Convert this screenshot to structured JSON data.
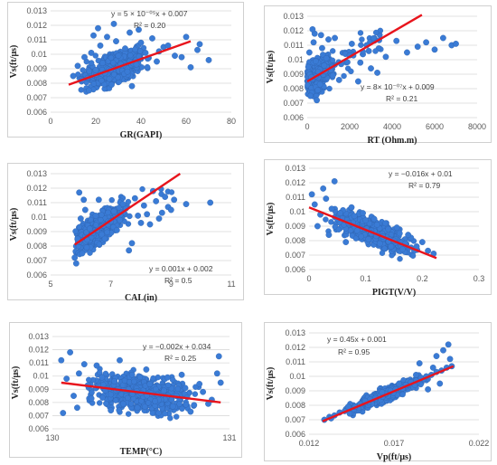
{
  "chart_data": [
    {
      "type": "scatter",
      "ylabel": "Vs(ft/μs)",
      "xlabel": "GR(GAPI)",
      "xlim": [
        0,
        80
      ],
      "ylim": [
        0.006,
        0.013
      ],
      "xticks": [
        "0",
        "20",
        "40",
        "60",
        "80"
      ],
      "yticks": [
        "0.006",
        "0.007",
        "0.008",
        "0.009",
        "0.01",
        "0.011",
        "0.012",
        "0.013"
      ],
      "equation": "y = 5 × 10⁻⁰⁵x + 0.007",
      "r2": "R² = 0.20",
      "trend": {
        "x": [
          8,
          62
        ],
        "y": [
          0.0079,
          0.0109
        ]
      },
      "cloud": {
        "x_center": 28,
        "x_spread": 14,
        "x_min": 8,
        "x_max": 70,
        "y_spread": 0.0009,
        "y_min": 0.0072,
        "y_max": 0.0122
      },
      "points": {
        "x": [
          10,
          12,
          15,
          18,
          20,
          22,
          25,
          27,
          30,
          33,
          35,
          38,
          40,
          43,
          45,
          48,
          50,
          55,
          60,
          65,
          70,
          14,
          17,
          21,
          24,
          28,
          31,
          36,
          42,
          47,
          52,
          58,
          62,
          66,
          19,
          23,
          26,
          29,
          34,
          39
        ],
        "y": [
          0.0085,
          0.0092,
          0.0098,
          0.0101,
          0.0089,
          0.0106,
          0.0112,
          0.0079,
          0.0099,
          0.0104,
          0.0115,
          0.0093,
          0.0108,
          0.0097,
          0.0111,
          0.0102,
          0.0105,
          0.0099,
          0.0112,
          0.0103,
          0.0096,
          0.0082,
          0.0075,
          0.0118,
          0.0087,
          0.0121,
          0.0093,
          0.0078,
          0.0101,
          0.0095,
          0.0106,
          0.0098,
          0.0091,
          0.0107,
          0.0113,
          0.0094,
          0.0083,
          0.0109,
          0.0088,
          0.0117
        ]
      }
    },
    {
      "type": "scatter",
      "ylabel": "Vs(ft/μs)",
      "xlabel": "RT (Ohm.m)",
      "xlim": [
        0,
        8000
      ],
      "ylim": [
        0.006,
        0.013
      ],
      "xticks": [
        "0",
        "2000",
        "4000",
        "6000",
        "8000"
      ],
      "yticks": [
        "0.006",
        "0.007",
        "0.008",
        "0.009",
        "0.01",
        "0.011",
        "0.012",
        "0.013"
      ],
      "equation": "y = 8× 10⁻⁰⁷x + 0.009",
      "r2": "R² = 0.21",
      "trend": {
        "x": [
          0,
          5400
        ],
        "y": [
          0.0085,
          0.0131
        ]
      },
      "cloud": {
        "x_center": 400,
        "x_spread": 700,
        "x_min": 0,
        "x_max": 3500,
        "y_spread": 0.001,
        "y_min": 0.007,
        "y_max": 0.0122
      },
      "points": {
        "x": [
          50,
          100,
          200,
          300,
          400,
          500,
          700,
          900,
          1100,
          1300,
          1500,
          1800,
          2100,
          2500,
          2900,
          3300,
          3700,
          4200,
          4700,
          5200,
          5600,
          6000,
          6400,
          6800,
          7000,
          150,
          350,
          600,
          800,
          1000,
          1200,
          1600,
          2000,
          2400,
          2800,
          3000,
          250,
          450,
          650,
          850
        ],
        "y": [
          0.0095,
          0.0105,
          0.0088,
          0.0112,
          0.0099,
          0.0079,
          0.0108,
          0.0101,
          0.0093,
          0.0115,
          0.0086,
          0.0104,
          0.0111,
          0.0098,
          0.0106,
          0.0091,
          0.0102,
          0.0113,
          0.0105,
          0.0109,
          0.0112,
          0.0107,
          0.0115,
          0.011,
          0.0111,
          0.0075,
          0.0118,
          0.0083,
          0.0096,
          0.0114,
          0.0089,
          0.0097,
          0.0103,
          0.0085,
          0.011,
          0.0094,
          0.0121,
          0.0072,
          0.0117,
          0.0092
        ]
      }
    },
    {
      "type": "scatter",
      "ylabel": "Vs(ft/μs)",
      "xlabel": "CAL(in)",
      "xlim": [
        5,
        11
      ],
      "ylim": [
        0.006,
        0.013
      ],
      "xticks": [
        "5",
        "7",
        "9",
        "11"
      ],
      "yticks": [
        "0.006",
        "0.007",
        "0.008",
        "0.009",
        "0.01",
        "0.011",
        "0.012",
        "0.013"
      ],
      "equation": "y = 0.001x + 0.002",
      "r2": "R² = 0.5",
      "trend": {
        "x": [
          5.8,
          9.3
        ],
        "y": [
          0.0081,
          0.013
        ]
      },
      "cloud": {
        "x_center": 6.6,
        "x_spread": 0.9,
        "x_min": 5.8,
        "x_max": 9.2,
        "y_spread": 0.0009,
        "y_min": 0.0068,
        "y_max": 0.012
      },
      "points": {
        "x": [
          5.8,
          5.9,
          6.0,
          6.1,
          6.2,
          6.3,
          6.5,
          6.7,
          6.9,
          7.1,
          7.3,
          7.5,
          7.7,
          7.9,
          8.1,
          8.3,
          8.5,
          8.7,
          8.9,
          9.1,
          9.5,
          10.3,
          5.85,
          5.95,
          6.05,
          6.15,
          6.4,
          6.6,
          6.8,
          7.0,
          7.2,
          7.4,
          7.6,
          7.8,
          8.0,
          8.2,
          8.4,
          8.6,
          8.8,
          9.0
        ],
        "y": [
          0.0072,
          0.0085,
          0.0099,
          0.0112,
          0.0079,
          0.0092,
          0.0101,
          0.0088,
          0.0095,
          0.0104,
          0.0098,
          0.0106,
          0.0082,
          0.0101,
          0.0108,
          0.0095,
          0.0111,
          0.0103,
          0.0107,
          0.0112,
          0.0109,
          0.011,
          0.0068,
          0.0117,
          0.0075,
          0.0105,
          0.0089,
          0.0112,
          0.0085,
          0.0097,
          0.0091,
          0.0109,
          0.0077,
          0.0113,
          0.0096,
          0.0102,
          0.0118,
          0.0099,
          0.0114,
          0.0105
        ]
      }
    },
    {
      "type": "scatter",
      "ylabel": "Vs(ft/μs)",
      "xlabel": "PIGT(V/V)",
      "xlim": [
        0,
        0.3
      ],
      "ylim": [
        0.006,
        0.013
      ],
      "xticks": [
        "0",
        "0.1",
        "0.2",
        "0.3"
      ],
      "yticks": [
        "0.006",
        "0.007",
        "0.008",
        "0.009",
        "0.01",
        "0.011",
        "0.012",
        "0.013"
      ],
      "equation": "y = −0.016x + 0.01",
      "r2": "R² = 0.79",
      "trend": {
        "x": [
          0,
          0.225
        ],
        "y": [
          0.0103,
          0.0068
        ]
      },
      "cloud": {
        "x_center": 0.11,
        "x_spread": 0.07,
        "x_min": 0.0,
        "x_max": 0.23,
        "y_spread": 0.0008,
        "y_min": 0.0066,
        "y_max": 0.0122
      },
      "points": {
        "x": [
          0.005,
          0.01,
          0.02,
          0.03,
          0.04,
          0.05,
          0.06,
          0.07,
          0.08,
          0.09,
          0.1,
          0.11,
          0.12,
          0.13,
          0.14,
          0.15,
          0.16,
          0.17,
          0.18,
          0.19,
          0.2,
          0.21,
          0.22,
          0.015,
          0.025,
          0.035,
          0.045,
          0.055,
          0.065,
          0.075,
          0.085,
          0.095,
          0.105,
          0.115,
          0.125,
          0.135,
          0.145,
          0.155,
          0.165,
          0.175
        ],
        "y": [
          0.0112,
          0.0105,
          0.0098,
          0.0109,
          0.0102,
          0.0095,
          0.0101,
          0.0092,
          0.0097,
          0.0088,
          0.0094,
          0.0085,
          0.0091,
          0.0083,
          0.0088,
          0.008,
          0.0085,
          0.0078,
          0.0082,
          0.0076,
          0.0079,
          0.0073,
          0.0071,
          0.009,
          0.0116,
          0.0084,
          0.0121,
          0.0099,
          0.0079,
          0.0103,
          0.0087,
          0.0099,
          0.0081,
          0.0095,
          0.0078,
          0.0092,
          0.0076,
          0.0089,
          0.0074,
          0.0084
        ]
      }
    },
    {
      "type": "scatter",
      "ylabel": "Vs(ft/μs)",
      "xlabel": "TEMP(°C)",
      "xlim": [
        130,
        131
      ],
      "ylim": [
        0.006,
        0.013
      ],
      "xticks": [
        "130",
        "131"
      ],
      "yticks": [
        "0.006",
        "0.007",
        "0.008",
        "0.009",
        "0.01",
        "0.011",
        "0.012",
        "0.013"
      ],
      "equation": "y = −0.002x + 0.034",
      "r2": "R² = 0.25",
      "trend": {
        "x": [
          130.05,
          130.95
        ],
        "y": [
          0.0095,
          0.008
        ]
      },
      "cloud": {
        "x_center": 130.5,
        "x_spread": 0.3,
        "x_min": 130.05,
        "x_max": 130.95,
        "y_spread": 0.0012,
        "y_min": 0.0068,
        "y_max": 0.0123
      },
      "points": {
        "x": [
          130.05,
          130.08,
          130.12,
          130.15,
          130.2,
          130.25,
          130.3,
          130.35,
          130.4,
          130.45,
          130.5,
          130.55,
          130.6,
          130.65,
          130.7,
          130.75,
          130.8,
          130.85,
          130.9,
          130.95,
          130.06,
          130.1,
          130.14,
          130.18,
          130.22,
          130.28,
          130.33,
          130.38,
          130.43,
          130.48,
          130.53,
          130.58,
          130.63,
          130.68,
          130.73,
          130.78,
          130.83,
          130.88,
          130.93,
          130.94
        ],
        "y": [
          0.0112,
          0.0098,
          0.0085,
          0.0102,
          0.0093,
          0.0108,
          0.0089,
          0.0096,
          0.0079,
          0.0101,
          0.0087,
          0.0094,
          0.0082,
          0.0099,
          0.0085,
          0.0091,
          0.0078,
          0.0088,
          0.0082,
          0.0095,
          0.0072,
          0.0118,
          0.0076,
          0.0109,
          0.0083,
          0.0099,
          0.0074,
          0.0112,
          0.009,
          0.0076,
          0.0105,
          0.0081,
          0.0089,
          0.0077,
          0.0101,
          0.0073,
          0.0094,
          0.0079,
          0.0102,
          0.0115
        ]
      }
    },
    {
      "type": "scatter",
      "ylabel": "Vs(ft/μs)",
      "xlabel": "Vp(ft/μs)",
      "xlim": [
        0.012,
        0.022
      ],
      "ylim": [
        0.006,
        0.013
      ],
      "xticks": [
        "0.012",
        "0.017",
        "0.022"
      ],
      "yticks": [
        "0.006",
        "0.007",
        "0.008",
        "0.009",
        "0.01",
        "0.011",
        "0.012",
        "0.013"
      ],
      "equation": "y = 0.45x + 0.001",
      "r2": "R² = 0.95",
      "trend": {
        "x": [
          0.0128,
          0.0205
        ],
        "y": [
          0.0069,
          0.0107
        ]
      },
      "cloud": {
        "x_center": 0.0166,
        "x_spread": 0.0022,
        "x_min": 0.0128,
        "x_max": 0.0205,
        "y_spread": 0.0004,
        "y_min": 0.0068,
        "y_max": 0.0122
      },
      "points": {
        "x": [
          0.0129,
          0.0132,
          0.0135,
          0.0138,
          0.0141,
          0.0144,
          0.0147,
          0.015,
          0.0153,
          0.0156,
          0.0159,
          0.0162,
          0.0165,
          0.0168,
          0.0171,
          0.0174,
          0.0177,
          0.018,
          0.0183,
          0.0186,
          0.0189,
          0.0192,
          0.0195,
          0.0198,
          0.0201,
          0.0204,
          0.0133,
          0.0143,
          0.0153,
          0.0163,
          0.0173,
          0.0183,
          0.0193,
          0.0203,
          0.0185,
          0.0195,
          0.0199,
          0.0202,
          0.0197,
          0.019
        ],
        "y": [
          0.007,
          0.0072,
          0.0073,
          0.0075,
          0.0076,
          0.0078,
          0.0079,
          0.0081,
          0.0082,
          0.0084,
          0.0085,
          0.0087,
          0.0088,
          0.009,
          0.0091,
          0.0093,
          0.0094,
          0.0096,
          0.0097,
          0.0099,
          0.01,
          0.0101,
          0.0103,
          0.0104,
          0.0106,
          0.0107,
          0.0071,
          0.0079,
          0.0083,
          0.0089,
          0.0095,
          0.0101,
          0.0106,
          0.0112,
          0.0109,
          0.0114,
          0.0118,
          0.0122,
          0.0095,
          0.0091
        ]
      }
    }
  ]
}
